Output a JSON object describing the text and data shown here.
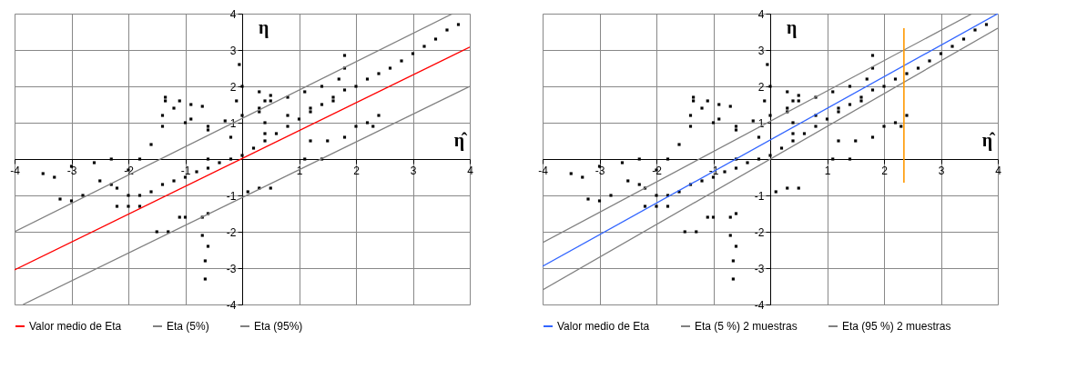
{
  "chart_data": [
    {
      "type": "scatter",
      "xlabel": "η̂",
      "ylabel": "η",
      "xlim": [
        -4,
        4
      ],
      "ylim": [
        -4,
        4
      ],
      "xticks": [
        -4,
        -3,
        -2,
        -1,
        {
          "value": 0,
          "label": null
        },
        1,
        2,
        3,
        4
      ],
      "yticks": [
        -4,
        -3,
        -2,
        -1,
        {
          "value": 0,
          "label": null
        },
        1,
        2,
        3,
        4
      ],
      "grid": true,
      "legend": "bottom",
      "series": [
        {
          "marker": "square",
          "color": "#000000",
          "x": [
            -2,
            -1.8,
            -1.6,
            -1.4,
            -1.2,
            -1,
            -0.8,
            -0.6,
            -0.4,
            -0.2,
            0,
            0.2,
            0.4,
            0.6,
            0.8,
            1.0,
            1.2,
            1.4,
            1.6,
            1.8,
            2.0,
            2.2,
            2.4,
            2.6,
            2.8,
            3.0,
            3.2,
            3.4,
            3.6,
            3.8,
            -0.6,
            -0.3,
            0,
            0.3,
            0.5,
            0.8,
            1.1,
            1.4,
            1.7,
            1.8,
            1.8,
            0.4,
            0.8,
            1.2,
            1.6,
            -2.0,
            -1.8,
            -1.6,
            -1.4,
            -1.4,
            -1.35,
            -1.35,
            -1.1,
            -1.2,
            -1.0,
            -0.9,
            -0.7,
            -0.9,
            -0.05,
            0,
            0.3,
            0.5,
            0.4,
            -3.2,
            -3,
            -2.8,
            -2.5,
            -2.3,
            -2.2,
            -2.2,
            -2.0,
            -1.8,
            -1.5,
            -1.3,
            -1.1,
            -1.0,
            -0.7,
            -0.6,
            -0.7,
            -0.6,
            -0.65,
            -0.65,
            -3.5,
            -3.3,
            -3.0,
            -2.6,
            -2.3,
            1.2,
            1.5,
            1.8,
            2.0,
            2.2,
            2.4,
            2.3,
            1.1,
            1.4,
            0.3,
            0.5,
            0.1,
            -0.1,
            -0.2,
            0.3,
            0.4,
            -0.6,
            -0.6
          ],
          "values": [
            -1.0,
            -1.0,
            -0.9,
            -0.7,
            -0.6,
            -0.5,
            -0.35,
            -0.25,
            -0.1,
            0,
            0.1,
            0.3,
            0.5,
            0.7,
            0.9,
            1.1,
            1.3,
            1.5,
            1.7,
            1.9,
            2.0,
            2.2,
            2.35,
            2.5,
            2.7,
            2.9,
            3.1,
            3.3,
            3.55,
            3.7,
            0.9,
            1.05,
            1.2,
            1.4,
            1.6,
            1.7,
            1.85,
            2.0,
            2.2,
            2.5,
            2.85,
            1.0,
            1.2,
            1.4,
            1.6,
            -0.3,
            0,
            0.4,
            0.9,
            1.2,
            1.6,
            1.7,
            1.6,
            1.4,
            1.0,
            1.5,
            1.45,
            1.1,
            2.6,
            2.0,
            1.85,
            1.75,
            1.6,
            -1.1,
            -1.15,
            -1.0,
            -0.6,
            -0.7,
            -0.8,
            -1.3,
            -1.3,
            -1.3,
            -2.0,
            -2.0,
            -1.6,
            -1.6,
            -1.6,
            -1.5,
            -2.1,
            -2.4,
            -2.8,
            -3.3,
            -0.4,
            -0.5,
            -0.2,
            -0.1,
            0,
            0.5,
            0.5,
            0.6,
            0.9,
            1.0,
            1.2,
            0.9,
            0.0,
            0.0,
            -0.8,
            -0.8,
            -0.9,
            1.6,
            0.6,
            1.3,
            0.7,
            0.8,
            0.0
          ]
        },
        {
          "type": "line",
          "name": "Valor medio de Eta",
          "color": "#ff0000",
          "x": [
            -4,
            4
          ],
          "values": [
            -3.05,
            3.08
          ]
        },
        {
          "type": "line",
          "name": "Eta (5%)",
          "color": "#808080",
          "x": [
            -4,
            3.7
          ],
          "values": [
            -2.0,
            4.0
          ]
        },
        {
          "type": "line",
          "name": "Eta (95%)",
          "color": "#808080",
          "x": [
            -3.85,
            4
          ],
          "values": [
            -4.0,
            2.0
          ]
        }
      ]
    },
    {
      "type": "scatter",
      "xlabel": "η̂",
      "ylabel": "η",
      "xlim": [
        -4,
        4
      ],
      "ylim": [
        -4,
        4
      ],
      "xticks": [
        -4,
        -3,
        -2,
        -1,
        {
          "value": 0,
          "label": null
        },
        1,
        2,
        3,
        4
      ],
      "yticks": [
        -4,
        -3,
        -2,
        -1,
        {
          "value": 0,
          "label": null
        },
        1,
        2,
        3,
        4
      ],
      "grid": true,
      "legend": "bottom",
      "series": [
        {
          "marker": "square",
          "color": "#000000",
          "x": [
            -2,
            -1.8,
            -1.6,
            -1.4,
            -1.2,
            -1,
            -0.8,
            -0.6,
            -0.4,
            -0.2,
            0,
            0.2,
            0.4,
            0.6,
            0.8,
            1.0,
            1.2,
            1.4,
            1.6,
            1.8,
            2.0,
            2.2,
            2.4,
            2.6,
            2.8,
            3.0,
            3.2,
            3.4,
            3.6,
            3.8,
            -0.6,
            -0.3,
            0,
            0.3,
            0.5,
            0.8,
            1.1,
            1.4,
            1.7,
            1.8,
            1.8,
            0.4,
            0.8,
            1.2,
            1.6,
            -2.0,
            -1.8,
            -1.6,
            -1.4,
            -1.4,
            -1.35,
            -1.35,
            -1.1,
            -1.2,
            -1.0,
            -0.9,
            -0.7,
            -0.9,
            -0.05,
            0,
            0.3,
            0.5,
            0.4,
            -3.2,
            -3,
            -2.8,
            -2.5,
            -2.3,
            -2.2,
            -2.2,
            -2.0,
            -1.8,
            -1.5,
            -1.3,
            -1.1,
            -1.0,
            -0.7,
            -0.6,
            -0.7,
            -0.6,
            -0.65,
            -0.65,
            -3.5,
            -3.3,
            -3.0,
            -2.6,
            -2.3,
            1.2,
            1.5,
            1.8,
            2.0,
            2.2,
            2.4,
            2.3,
            1.1,
            1.4,
            0.3,
            0.5,
            0.1,
            -0.1,
            -0.2,
            0.3,
            0.4,
            -0.6,
            -0.6
          ],
          "values": [
            -1.0,
            -1.0,
            -0.9,
            -0.7,
            -0.6,
            -0.5,
            -0.35,
            -0.25,
            -0.1,
            0,
            0.1,
            0.3,
            0.5,
            0.7,
            0.9,
            1.1,
            1.3,
            1.5,
            1.7,
            1.9,
            2.0,
            2.2,
            2.35,
            2.5,
            2.7,
            2.9,
            3.1,
            3.3,
            3.55,
            3.7,
            0.9,
            1.05,
            1.2,
            1.4,
            1.6,
            1.7,
            1.85,
            2.0,
            2.2,
            2.5,
            2.85,
            1.0,
            1.2,
            1.4,
            1.6,
            -0.3,
            0,
            0.4,
            0.9,
            1.2,
            1.6,
            1.7,
            1.6,
            1.4,
            1.0,
            1.5,
            1.45,
            1.1,
            2.6,
            2.0,
            1.85,
            1.75,
            1.6,
            -1.1,
            -1.15,
            -1.0,
            -0.6,
            -0.7,
            -0.8,
            -1.3,
            -1.3,
            -1.3,
            -2.0,
            -2.0,
            -1.6,
            -1.6,
            -1.6,
            -1.5,
            -2.1,
            -2.4,
            -2.8,
            -3.3,
            -0.4,
            -0.5,
            -0.2,
            -0.1,
            0,
            0.5,
            0.5,
            0.6,
            0.9,
            1.0,
            1.2,
            0.9,
            0.0,
            0.0,
            -0.8,
            -0.8,
            -0.9,
            1.6,
            0.6,
            1.3,
            0.7,
            0.8,
            0.0
          ]
        },
        {
          "type": "line",
          "name": "Valor medio de Eta",
          "color": "#3366ff",
          "x": [
            -4,
            4
          ],
          "values": [
            -2.95,
            4.0
          ]
        },
        {
          "type": "line",
          "name": "Eta (5 %) 2 muestras",
          "color": "#808080",
          "x": [
            -4,
            3.55
          ],
          "values": [
            -2.3,
            4.0
          ]
        },
        {
          "type": "line",
          "name": "Eta (95 %) 2 muestras",
          "color": "#808080",
          "x": [
            -4,
            4
          ],
          "values": [
            -3.6,
            3.6
          ]
        },
        {
          "type": "line",
          "color": "#ff9900",
          "x": [
            2.35,
            2.35
          ],
          "values": [
            -0.65,
            3.6
          ]
        }
      ]
    }
  ]
}
